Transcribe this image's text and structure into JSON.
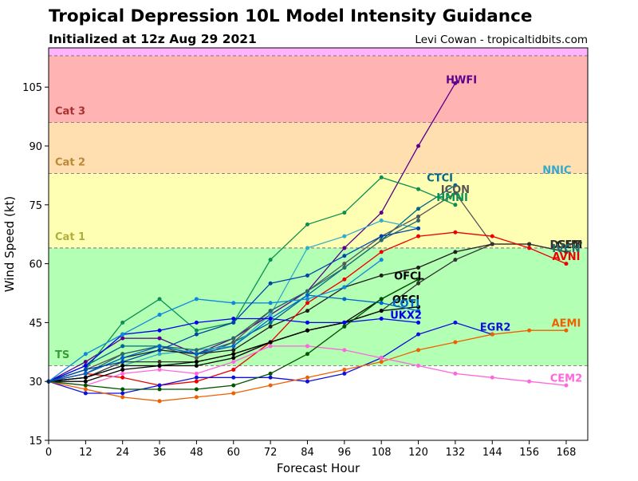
{
  "title": "Tropical Depression 10L Model Intensity Guidance",
  "subtitle": "Initialized at 12z Aug 29 2021",
  "credit": "Levi Cowan - tropicaltidbits.com",
  "chart_data": {
    "type": "line",
    "xlabel": "Forecast Hour",
    "ylabel": "Wind Speed (kt)",
    "xlim": [
      0,
      175
    ],
    "ylim": [
      15,
      115
    ],
    "xticks": [
      0,
      12,
      24,
      36,
      48,
      60,
      72,
      84,
      96,
      108,
      120,
      132,
      144,
      156,
      168
    ],
    "yticks": [
      15,
      30,
      45,
      60,
      75,
      90,
      105
    ],
    "bands": [
      {
        "label": "TS",
        "from": 34,
        "to": 64,
        "color": "#b3ffb3",
        "label_color": "#3b9b3b",
        "label_y": 37
      },
      {
        "label": "Cat 1",
        "from": 64,
        "to": 83,
        "color": "#ffffb3",
        "label_color": "#b0b040",
        "label_y": 67
      },
      {
        "label": "Cat 2",
        "from": 83,
        "to": 96,
        "color": "#ffdeb0",
        "label_color": "#b88a3a",
        "label_y": 86
      },
      {
        "label": "Cat 3",
        "from": 96,
        "to": 113,
        "color": "#ffb3b3",
        "label_color": "#a83232",
        "label_y": 99
      },
      {
        "label": "",
        "from": 113,
        "to": 115,
        "color": "#ffb3ff",
        "label_color": "#000000",
        "label_y": 114
      }
    ],
    "series": [
      {
        "name": "HWFI",
        "color": "#5a008a",
        "x": [
          0,
          12,
          24,
          36,
          48,
          60,
          72,
          84,
          96,
          108,
          120,
          132
        ],
        "y": [
          30,
          35,
          41,
          41,
          37,
          41,
          47,
          53,
          64,
          73,
          90,
          106
        ],
        "label_x": 134,
        "label_y": 107
      },
      {
        "name": "CTCI",
        "color": "#006888",
        "x": [
          0,
          12,
          24,
          36,
          48,
          60,
          72,
          84,
          96,
          108,
          120,
          132
        ],
        "y": [
          30,
          34,
          39,
          39,
          37,
          40,
          45,
          52,
          59,
          66,
          74,
          80
        ],
        "label_x": 127,
        "label_y": 82
      },
      {
        "name": "ICON",
        "color": "#555555",
        "x": [
          0,
          12,
          24,
          36,
          48,
          60,
          72,
          84,
          96,
          108,
          120,
          132,
          144
        ],
        "y": [
          30,
          33,
          37,
          39,
          36,
          40,
          48,
          53,
          60,
          67,
          72,
          78,
          65
        ],
        "label_x": 132,
        "label_y": 79
      },
      {
        "name": "HMNI",
        "color": "#0a8f55",
        "x": [
          0,
          12,
          24,
          36,
          48,
          60,
          72,
          84,
          96,
          108,
          120,
          132
        ],
        "y": [
          30,
          33,
          45,
          51,
          43,
          45,
          61,
          70,
          73,
          82,
          79,
          75
        ],
        "label_x": 131,
        "label_y": 77
      },
      {
        "name": "NNIC",
        "color": "#33aacc",
        "x": [
          0,
          12,
          24,
          36,
          48,
          60,
          72,
          84,
          96,
          108,
          120
        ],
        "y": [
          30,
          31,
          34,
          37,
          38,
          39,
          47,
          64,
          67,
          71,
          69
        ],
        "label_x": 165,
        "label_y": 84
      },
      {
        "name": "LGEM",
        "color": "#1e1e1e",
        "x": [
          0,
          12,
          24,
          36,
          48,
          60,
          72,
          84,
          96,
          108,
          120,
          132,
          144,
          156,
          168
        ],
        "y": [
          30,
          32,
          36,
          38,
          37,
          38,
          44,
          48,
          54,
          57,
          59,
          63,
          65,
          65,
          63
        ],
        "label_x": 168,
        "label_y": 65
      },
      {
        "name": "DSHP",
        "color": "#333333",
        "x": [
          0,
          12,
          24,
          36,
          48,
          60,
          72,
          84,
          96,
          108,
          120,
          132,
          144,
          156,
          168
        ],
        "y": [
          30,
          31,
          35,
          35,
          35,
          37,
          40,
          43,
          45,
          48,
          55,
          61,
          65,
          65,
          63
        ],
        "label_x": 168,
        "label_y": 65
      },
      {
        "name": "IVCN",
        "color": "#2a6a6a",
        "x": [
          0,
          12,
          24,
          36,
          48,
          60,
          72,
          84,
          96,
          108,
          120
        ],
        "y": [
          30,
          32,
          37,
          39,
          38,
          41,
          48,
          53,
          59,
          66,
          71
        ],
        "label_x": 168,
        "label_y": 64
      },
      {
        "name": "AVNI",
        "color": "#ee0000",
        "x": [
          0,
          12,
          24,
          36,
          48,
          60,
          72,
          84,
          96,
          108,
          120,
          132,
          144,
          156,
          168
        ],
        "y": [
          30,
          32,
          31,
          29,
          30,
          33,
          40,
          50,
          56,
          63,
          67,
          68,
          67,
          64,
          60
        ],
        "label_x": 168,
        "label_y": 62
      },
      {
        "name": "OFCL",
        "color": "#000000",
        "x": [
          0,
          12,
          24,
          36,
          48,
          60,
          72,
          84,
          96,
          108,
          120
        ],
        "y": [
          30,
          31,
          34,
          34,
          35,
          37,
          40,
          43,
          45,
          51,
          56
        ],
        "label_x": 117,
        "label_y": 57
      },
      {
        "name": "OFCI",
        "color": "#000000",
        "x": [
          0,
          12,
          24,
          36,
          48,
          60,
          72,
          84,
          96,
          108,
          120
        ],
        "y": [
          30,
          30,
          33,
          34,
          34,
          36,
          40,
          43,
          45,
          48,
          49
        ],
        "label_x": 116,
        "label_y": 51
      },
      {
        "name": "COTI",
        "color": "#0066cc",
        "x": [
          0,
          12,
          24,
          36,
          48,
          60,
          72,
          84,
          96,
          108,
          120
        ],
        "y": [
          30,
          32,
          36,
          39,
          37,
          39,
          46,
          52,
          51,
          50,
          48
        ],
        "label_x": 116,
        "label_y": 50
      },
      {
        "name": "UKX2",
        "color": "#0000ee",
        "x": [
          0,
          12,
          24,
          36,
          48,
          60,
          72,
          84,
          96,
          108,
          120
        ],
        "y": [
          30,
          34,
          42,
          43,
          45,
          46,
          46,
          45,
          45,
          46,
          45
        ],
        "label_x": 116,
        "label_y": 47
      },
      {
        "name": "EGR2",
        "color": "#1010dd",
        "x": [
          0,
          12,
          24,
          36,
          48,
          60,
          72,
          84,
          96,
          108,
          120,
          132,
          144
        ],
        "y": [
          30,
          27,
          27,
          29,
          31,
          31,
          31,
          30,
          32,
          36,
          42,
          45,
          42
        ],
        "label_x": 145,
        "label_y": 44
      },
      {
        "name": "AEMI",
        "color": "#f06000",
        "x": [
          0,
          12,
          24,
          36,
          48,
          60,
          72,
          84,
          96,
          108,
          120,
          132,
          144,
          156,
          168
        ],
        "y": [
          30,
          28,
          26,
          25,
          26,
          27,
          29,
          31,
          33,
          35,
          38,
          40,
          42,
          43,
          43
        ],
        "label_x": 168,
        "label_y": 45
      },
      {
        "name": "CEM2",
        "color": "#ff66dd",
        "x": [
          0,
          12,
          24,
          36,
          48,
          60,
          72,
          84,
          96,
          108,
          120,
          132,
          144,
          156,
          168
        ],
        "y": [
          30,
          29,
          32,
          33,
          32,
          35,
          39,
          39,
          38,
          36,
          34,
          32,
          31,
          30,
          29
        ],
        "label_x": 168,
        "label_y": 31
      },
      {
        "name": "",
        "color": "#005500",
        "x": [
          0,
          12,
          24,
          36,
          48,
          60,
          72,
          84,
          96,
          108,
          120
        ],
        "y": [
          30,
          29,
          28,
          28,
          28,
          29,
          32,
          37,
          44,
          51,
          56
        ],
        "label_x": null,
        "label_y": null
      },
      {
        "name": "",
        "color": "#1188dd",
        "x": [
          0,
          12,
          24,
          36,
          48,
          60,
          72,
          84,
          96,
          108
        ],
        "y": [
          30,
          37,
          42,
          47,
          51,
          50,
          50,
          51,
          54,
          61
        ],
        "label_x": null,
        "label_y": null
      },
      {
        "name": "",
        "color": "#0044aa",
        "x": [
          0,
          12,
          24,
          36,
          48,
          60,
          72,
          84,
          96,
          108,
          120
        ],
        "y": [
          30,
          33,
          35,
          38,
          42,
          45,
          55,
          57,
          62,
          67,
          69
        ],
        "label_x": null,
        "label_y": null
      }
    ]
  }
}
